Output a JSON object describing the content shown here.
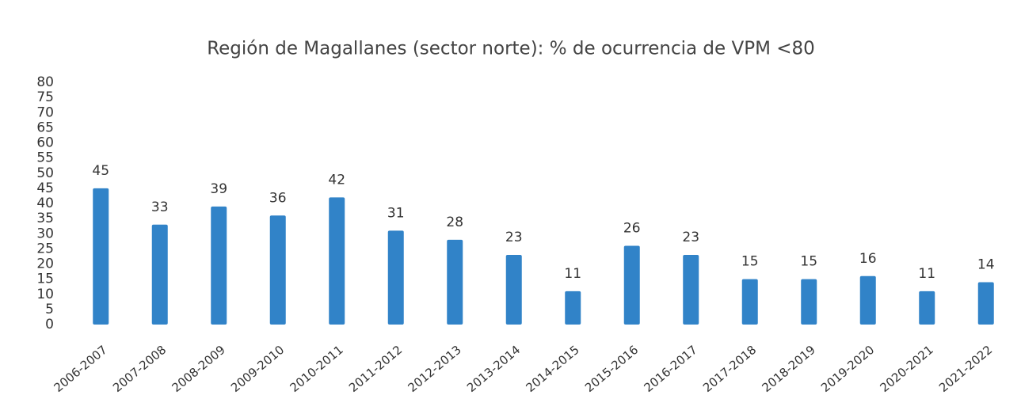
{
  "chart_data": {
    "type": "bar",
    "title": "Región de Magallanes (sector norte): % de ocurrencia de VPM <80",
    "categories": [
      "2006-2007",
      "2007-2008",
      "2008-2009",
      "2009-2010",
      "2010-2011",
      "2011-2012",
      "2012-2013",
      "2013-2014",
      "2014-2015",
      "2015-2016",
      "2016-2017",
      "2017-2018",
      "2018-2019",
      "2019-2020",
      "2020-2021",
      "2021-2022"
    ],
    "values": [
      45,
      33,
      39,
      36,
      42,
      31,
      28,
      23,
      11,
      26,
      23,
      15,
      15,
      16,
      11,
      14
    ],
    "color": "#3183c8",
    "ylim": [
      0,
      80
    ],
    "yticks": [
      0,
      5,
      10,
      15,
      20,
      25,
      30,
      35,
      40,
      45,
      50,
      55,
      60,
      65,
      70,
      75,
      80
    ],
    "grid": false
  }
}
